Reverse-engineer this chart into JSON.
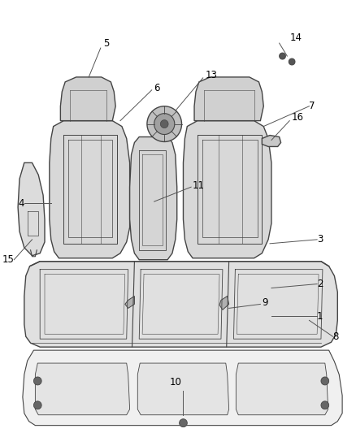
{
  "bg_color": "#ffffff",
  "line_color": "#444444",
  "label_color": "#000000",
  "figsize": [
    4.38,
    5.33
  ],
  "dpi": 100
}
